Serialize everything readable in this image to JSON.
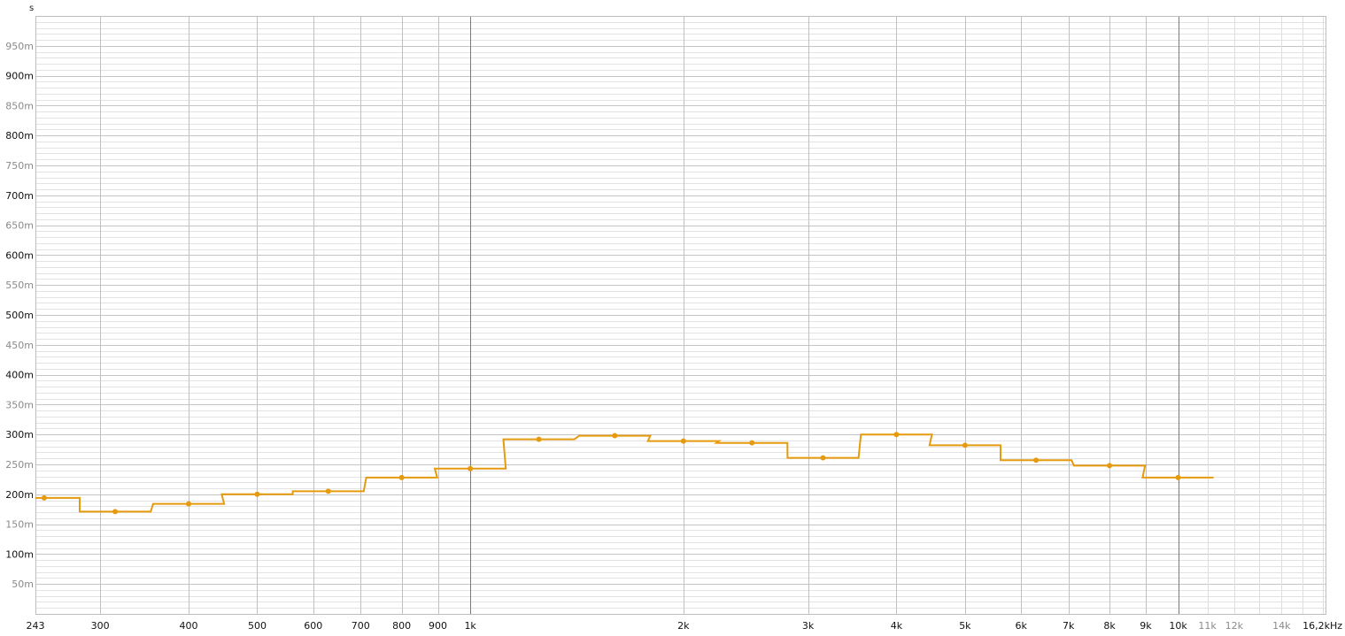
{
  "chart_data": {
    "type": "line",
    "style": "step",
    "ylabel": "s",
    "xunit": "kHz",
    "xscale": "log",
    "xlim": [
      243,
      16200
    ],
    "ylim": [
      0,
      1.0
    ],
    "grid": true,
    "series_color": "#e69a0e",
    "x": [
      250,
      315,
      400,
      500,
      630,
      800,
      1000,
      1250,
      1600,
      2000,
      2500,
      3150,
      4000,
      5000,
      6300,
      8000,
      10000
    ],
    "values": [
      0.194,
      0.171,
      0.184,
      0.2,
      0.205,
      0.228,
      0.243,
      0.292,
      0.298,
      0.289,
      0.286,
      0.261,
      0.3,
      0.282,
      0.257,
      0.248,
      0.228
    ],
    "yticks": [
      {
        "v": 0.05,
        "label": "50m",
        "major": false
      },
      {
        "v": 0.1,
        "label": "100m",
        "major": true
      },
      {
        "v": 0.15,
        "label": "150m",
        "major": false
      },
      {
        "v": 0.2,
        "label": "200m",
        "major": true
      },
      {
        "v": 0.25,
        "label": "250m",
        "major": false
      },
      {
        "v": 0.3,
        "label": "300m",
        "major": true
      },
      {
        "v": 0.35,
        "label": "350m",
        "major": false
      },
      {
        "v": 0.4,
        "label": "400m",
        "major": true
      },
      {
        "v": 0.45,
        "label": "450m",
        "major": false
      },
      {
        "v": 0.5,
        "label": "500m",
        "major": true
      },
      {
        "v": 0.55,
        "label": "550m",
        "major": false
      },
      {
        "v": 0.6,
        "label": "600m",
        "major": true
      },
      {
        "v": 0.65,
        "label": "650m",
        "major": false
      },
      {
        "v": 0.7,
        "label": "700m",
        "major": true
      },
      {
        "v": 0.75,
        "label": "750m",
        "major": false
      },
      {
        "v": 0.8,
        "label": "800m",
        "major": true
      },
      {
        "v": 0.85,
        "label": "850m",
        "major": false
      },
      {
        "v": 0.9,
        "label": "900m",
        "major": true
      },
      {
        "v": 0.95,
        "label": "950m",
        "major": false
      }
    ],
    "xticks": [
      {
        "v": 243,
        "label": "243",
        "major": true
      },
      {
        "v": 300,
        "label": "300",
        "major": true
      },
      {
        "v": 400,
        "label": "400",
        "major": true
      },
      {
        "v": 500,
        "label": "500",
        "major": true
      },
      {
        "v": 600,
        "label": "600",
        "major": true
      },
      {
        "v": 700,
        "label": "700",
        "major": true
      },
      {
        "v": 800,
        "label": "800",
        "major": true
      },
      {
        "v": 900,
        "label": "900",
        "major": true
      },
      {
        "v": 1000,
        "label": "1k",
        "major": true
      },
      {
        "v": 2000,
        "label": "2k",
        "major": true
      },
      {
        "v": 3000,
        "label": "3k",
        "major": true
      },
      {
        "v": 4000,
        "label": "4k",
        "major": true
      },
      {
        "v": 5000,
        "label": "5k",
        "major": true
      },
      {
        "v": 6000,
        "label": "6k",
        "major": true
      },
      {
        "v": 7000,
        "label": "7k",
        "major": true
      },
      {
        "v": 8000,
        "label": "8k",
        "major": true
      },
      {
        "v": 9000,
        "label": "9k",
        "major": true
      },
      {
        "v": 10000,
        "label": "10k",
        "major": true
      },
      {
        "v": 11000,
        "label": "11k",
        "major": false
      },
      {
        "v": 12000,
        "label": "12k",
        "major": false
      },
      {
        "v": 14000,
        "label": "14k",
        "major": false
      },
      {
        "v": 16200,
        "label": "16,2kHz",
        "major": true
      }
    ]
  }
}
